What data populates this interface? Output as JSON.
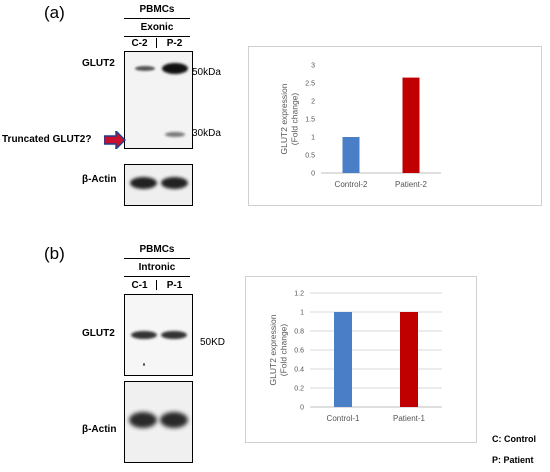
{
  "panel_a": {
    "label": "(a)",
    "header_top": "PBMCs",
    "header_sub": "Exonic",
    "lanes": [
      "C-2",
      "P-2"
    ],
    "protein_top": "GLUT2",
    "protein_bottom": "β-Actin",
    "truncated_label": "Truncated GLUT2?",
    "mw_top": "50kDa",
    "mw_bottom": "30kDa",
    "arrow_color": "#c8102e"
  },
  "panel_b": {
    "label": "(b)",
    "header_top": "PBMCs",
    "header_sub": "Intronic",
    "lanes": [
      "C-1",
      "P-1"
    ],
    "protein_top": "GLUT2",
    "protein_bottom": "β-Actin",
    "mw_top": "50KD"
  },
  "notes": {
    "control": "C: Control",
    "patient": "P: Patient"
  },
  "chart_data": [
    {
      "type": "bar",
      "categories": [
        "Control-2",
        "Patient-2"
      ],
      "values": [
        1.0,
        2.65
      ],
      "colors": [
        "#4a7ec6",
        "#c00000"
      ],
      "ylabel": "GLUT2 expression (Fold change)",
      "ylim": [
        0,
        3
      ],
      "yticks": [
        "0",
        "0.5",
        "1",
        "1.5",
        "2",
        "2.5",
        "3"
      ],
      "grid": false
    },
    {
      "type": "bar",
      "categories": [
        "Control-1",
        "Patient-1"
      ],
      "values": [
        1.0,
        1.0
      ],
      "colors": [
        "#4a7ec6",
        "#c00000"
      ],
      "ylabel": "GLUT2 expression (Fold change)",
      "ylim": [
        0,
        1.2
      ],
      "yticks": [
        "0",
        "0.2",
        "0.4",
        "0.6",
        "0.8",
        "1",
        "1.2"
      ],
      "grid": true
    }
  ]
}
